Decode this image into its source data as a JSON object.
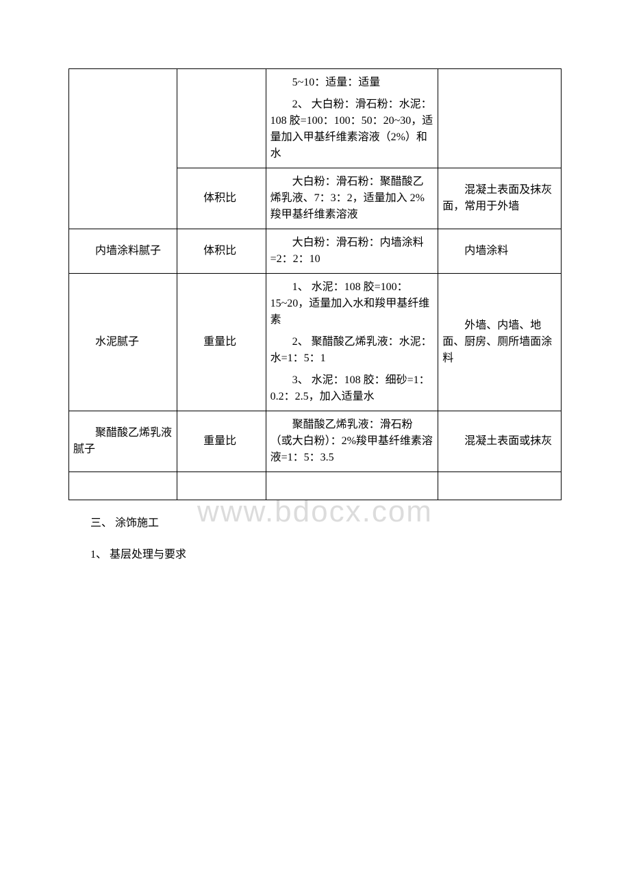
{
  "watermark": "www.bdocx.com",
  "table": {
    "row1_col3_p1": "5~10：适量：适量",
    "row1_col3_p2": "2、 大白粉：滑石粉：水泥：108 胶=100：100：50：20~30，适量加入甲基纤维素溶液（2%）和水",
    "row2_col2": "体积比",
    "row2_col3": "大白粉：滑石粉：聚醋酸乙烯乳液、7：3：2，适量加入 2%羧甲基纤维素溶液",
    "row2_col4": "混凝土表面及抹灰面，常用于外墙",
    "row3_col1": "内墙涂料腻子",
    "row3_col2": "体积比",
    "row3_col3": "大白粉：滑石粉：内墙涂料=2：2：10",
    "row3_col4": "内墙涂料",
    "row4_col1": "水泥腻子",
    "row4_col2": "重量比",
    "row4_col3_p1": "1、 水泥：108 胶=100：15~20，适量加入水和羧甲基纤维素",
    "row4_col3_p2": "2、 聚醋酸乙烯乳液：水泥：水=1：5：1",
    "row4_col3_p3": "3、 水泥：108 胶：细砂=1：0.2：2.5，加入适量水",
    "row4_col4": "外墙、内墙、地面、厨房、厕所墙面涂料",
    "row5_col1": "聚醋酸乙烯乳液腻子",
    "row5_col2": "重量比",
    "row5_col3": "聚醋酸乙烯乳液：滑石粉（或大白粉）：2%羧甲基纤维素溶液=1：5：3.5",
    "row5_col4": "混凝土表面或抹灰"
  },
  "after": {
    "p1": "三、 涂饰施工",
    "p2": "1、 基层处理与要求"
  }
}
